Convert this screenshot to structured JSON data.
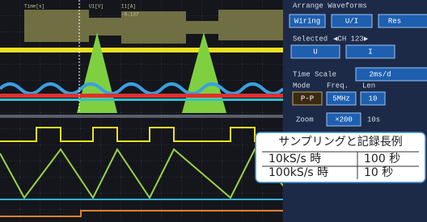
{
  "readout": {
    "headers": [
      "Time[s]",
      "U1[V]",
      "I1[A]"
    ],
    "value": "-6.137"
  },
  "panel": {
    "title": "Arrange Waveforms",
    "wiring_buttons": [
      "Wiring",
      "U/I",
      "Res"
    ],
    "selected_label": "Selected",
    "selected_channel": "◀CH 123▶",
    "channel_buttons": [
      "U",
      "I"
    ],
    "time_scale_label": "Time Scale",
    "time_scale_value": "2ms/d",
    "mode_labels": [
      "Mode",
      "Freq.",
      "Len"
    ],
    "mode_values": [
      "P-P",
      "5MHz",
      "10"
    ],
    "zoom_label": "Zoom",
    "zoom_value": "×200",
    "zoom_extra": "10s"
  },
  "table": {
    "title": "サンプリングと記録長例",
    "rows": [
      [
        "10kS/s 時",
        "100 秒"
      ],
      [
        "100kS/s 時",
        "10 秒"
      ]
    ]
  }
}
